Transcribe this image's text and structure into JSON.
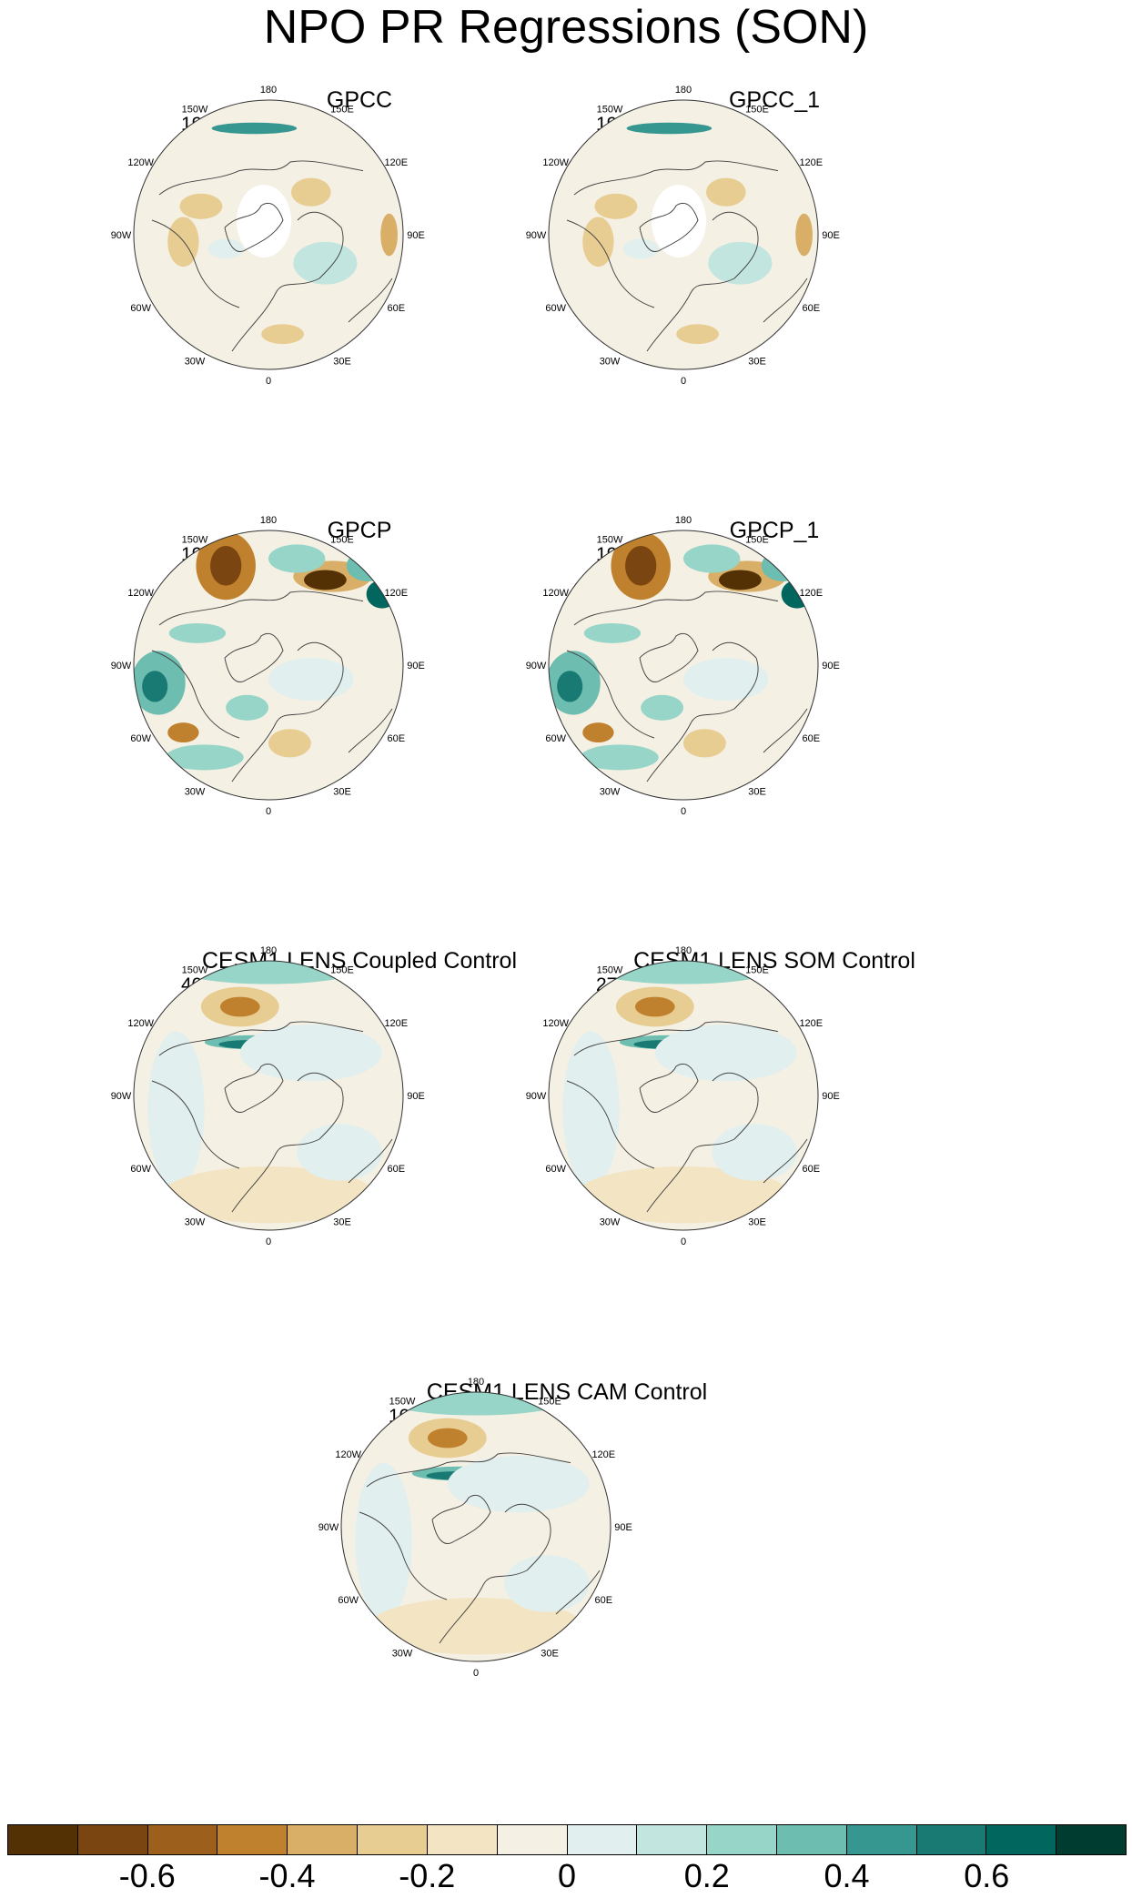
{
  "title": "NPO PR Regressions (SON)",
  "panels": [
    {
      "id": "gpcc",
      "title": "GPCC",
      "period": "1920-2018",
      "pattern": "gpcc"
    },
    {
      "id": "gpcc1",
      "title": "GPCC_1",
      "period": "1920-2018",
      "pattern": "gpcc"
    },
    {
      "id": "gpcp",
      "title": "GPCP",
      "period": "1979-2018",
      "pattern": "gpcp"
    },
    {
      "id": "gpcp1",
      "title": "GPCP_1",
      "period": "1980-2017",
      "pattern": "gpcp"
    },
    {
      "id": "coupled",
      "title": "CESM1 LENS Coupled Control",
      "period": "401-2200",
      "pattern": "model"
    },
    {
      "id": "som",
      "title": "CESM1 LENS SOM Control",
      "period": "277-1001",
      "pattern": "model"
    },
    {
      "id": "cam",
      "title": "CESM1 LENS CAM Control",
      "period": "100-2600",
      "pattern": "model"
    }
  ],
  "longitude_labels": [
    "180",
    "150E",
    "120E",
    "90E",
    "60E",
    "30E",
    "0",
    "30W",
    "60W",
    "90W",
    "120W",
    "150W"
  ],
  "colorbar": {
    "colors": [
      "#543005",
      "#7a4510",
      "#9c5f1c",
      "#bf812d",
      "#d9ae67",
      "#e8cd92",
      "#f3e5c3",
      "#f5f0e4",
      "#e1efee",
      "#c2e6df",
      "#97d5c9",
      "#6dbdb0",
      "#35978f",
      "#187a72",
      "#01665e",
      "#003c30"
    ],
    "labels": [
      "-0.6",
      "-0.4",
      "-0.2",
      "0",
      "0.2",
      "0.4",
      "0.6"
    ]
  }
}
